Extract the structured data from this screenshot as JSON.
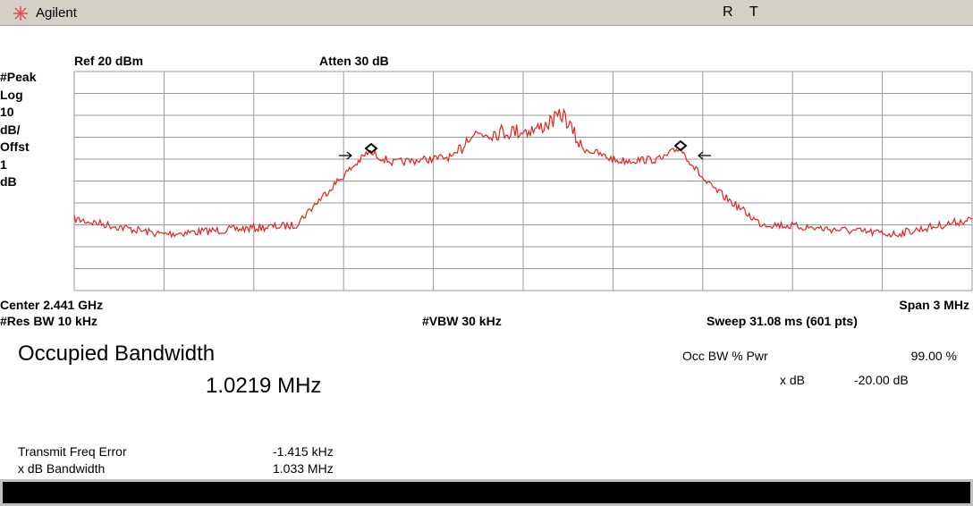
{
  "header": {
    "brand": "Agilent",
    "status": [
      "R",
      "T"
    ]
  },
  "display": {
    "ref": "Ref 20 dBm",
    "atten": "Atten 30 dB",
    "scale_labels": [
      "#Peak",
      "Log",
      "10",
      "dB/",
      "Offst",
      "1",
      "dB"
    ],
    "center": "Center 2.441 GHz",
    "span": "Span 3 MHz",
    "res_bw": "#Res BW 10 kHz",
    "vbw": "#VBW 30 kHz",
    "sweep": "Sweep 31.08 ms (601 pts)"
  },
  "measurement": {
    "title": "Occupied Bandwidth",
    "value": "1.0219 MHz",
    "settings": [
      {
        "label": "Occ BW % Pwr",
        "value": "99.00 %"
      },
      {
        "label": "x dB",
        "value": "-20.00 dB"
      }
    ],
    "results": [
      {
        "label": "Transmit Freq Error",
        "value": "-1.415 kHz"
      },
      {
        "label": "x dB Bandwidth",
        "value": "1.033 MHz"
      }
    ]
  }
}
